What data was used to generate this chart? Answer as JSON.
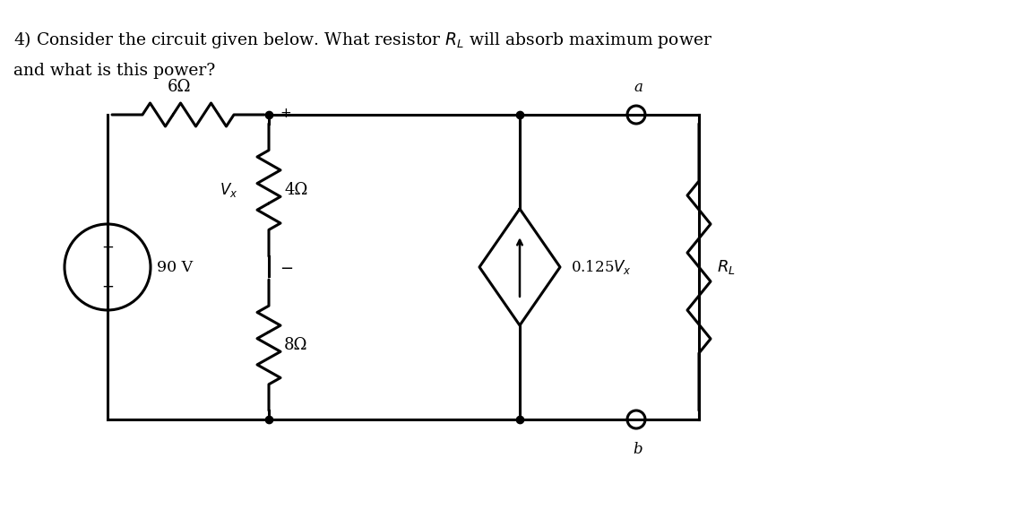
{
  "title_line1": "4) Consider the circuit given below. What resistor $R_L$ will absorb maximum power",
  "title_line2": "and what is this power?",
  "bg_color": "#ffffff",
  "line_color": "#000000",
  "lw": 2.2,
  "resistor_6_label": "6Ω",
  "resistor_4_label": "4Ω",
  "resistor_8_label": "8Ω",
  "resistor_RL_label": "$R_L$",
  "source_label": "90 V",
  "dep_source_label": "0.125$V_x$",
  "vx_label": "$V_x$",
  "node_a_label": "a",
  "node_b_label": "b"
}
